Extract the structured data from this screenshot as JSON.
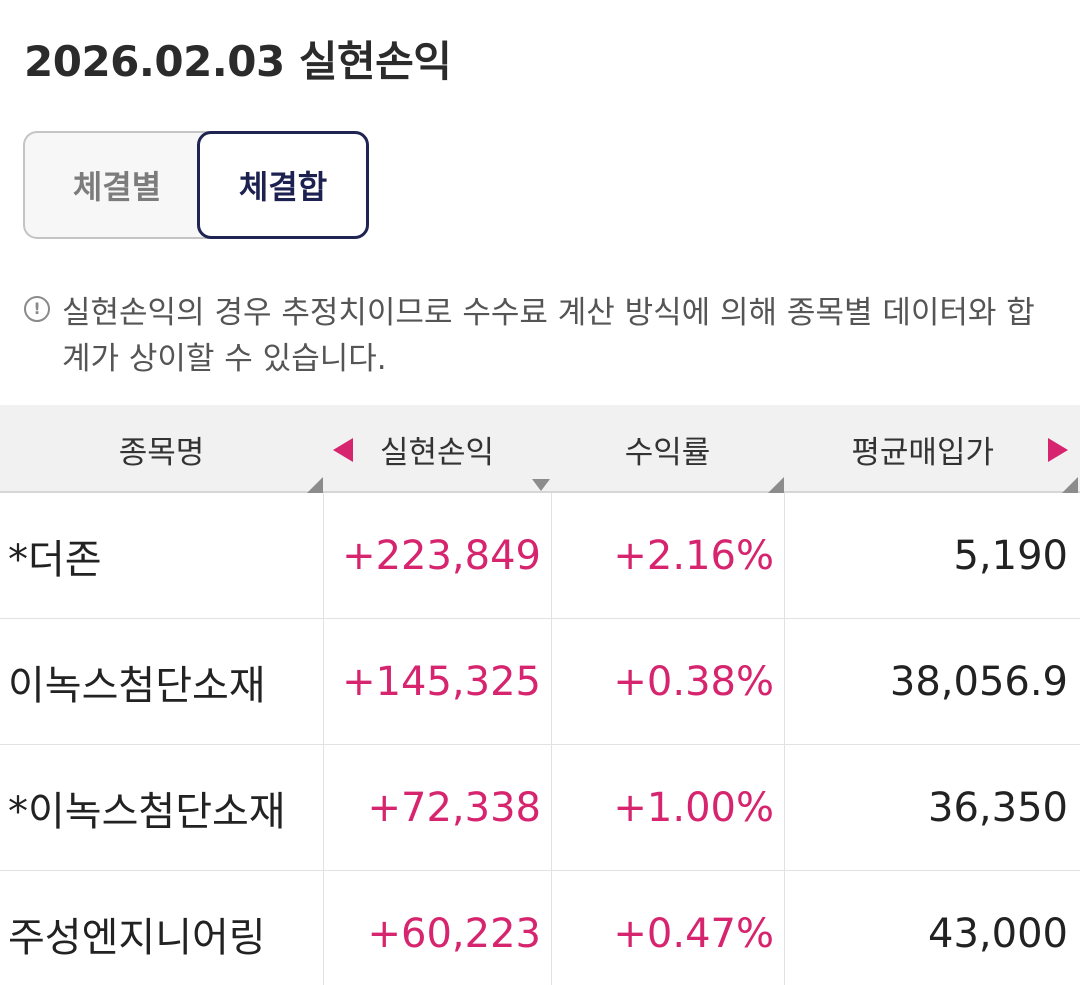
{
  "header": {
    "title": "2026.02.03 실현손익"
  },
  "segment": {
    "left_label": "체결별",
    "right_label": "체결합",
    "selected": "체결합"
  },
  "notice": {
    "icon": "info-circle-icon",
    "text": "실현손익의 경우 추정치이므로 수수료 계산 방식에 의해 종목별 데이터와 합계가 상이할 수 있습니다."
  },
  "table": {
    "columns": {
      "name": "종목명",
      "profit": "실현손익",
      "rate": "수익률",
      "avg_price": "평균매입가"
    },
    "rows": [
      {
        "name": "*더존",
        "profit": "+223,849",
        "rate": "+2.16%",
        "avg_price": "5,190"
      },
      {
        "name": "이녹스첨단소재",
        "profit": "+145,325",
        "rate": "+0.38%",
        "avg_price": "38,056.9"
      },
      {
        "name": "*이녹스첨단소재",
        "profit": "+72,338",
        "rate": "+1.00%",
        "avg_price": "36,350"
      },
      {
        "name": "주성엔지니어링",
        "profit": "+60,223",
        "rate": "+0.47%",
        "avg_price": "43,000"
      }
    ]
  },
  "colors": {
    "accent_positive": "#d6246e",
    "selected_border": "#1f2452"
  }
}
